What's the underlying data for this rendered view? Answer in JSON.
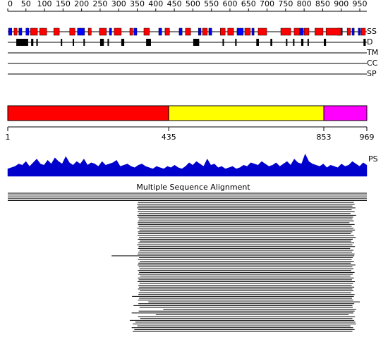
{
  "sequence_length": 969,
  "ruler": {
    "ticks": [
      0,
      50,
      100,
      150,
      200,
      250,
      300,
      350,
      400,
      450,
      500,
      550,
      600,
      650,
      700,
      750,
      800,
      850,
      900,
      950
    ]
  },
  "tracks": {
    "labels": [
      "SS",
      "D",
      "TM",
      "CC",
      "SP"
    ]
  },
  "ss": {
    "helix_color": "#ff0000",
    "strand_color": "#0000ff",
    "strands": [
      [
        3,
        12
      ],
      [
        31,
        39
      ],
      [
        50,
        58
      ],
      [
        189,
        208
      ],
      [
        275,
        281
      ],
      [
        341,
        349
      ],
      [
        408,
        416
      ],
      [
        463,
        471
      ],
      [
        515,
        522
      ],
      [
        543,
        551
      ],
      [
        619,
        636
      ],
      [
        659,
        665
      ],
      [
        789,
        798
      ],
      [
        889,
        903
      ],
      [
        929,
        935
      ],
      [
        946,
        952
      ]
    ],
    "helices": [
      [
        18,
        26
      ],
      [
        62,
        81
      ],
      [
        87,
        106
      ],
      [
        125,
        140
      ],
      [
        168,
        182
      ],
      [
        218,
        226
      ],
      [
        248,
        267
      ],
      [
        288,
        307
      ],
      [
        330,
        338
      ],
      [
        368,
        383
      ],
      [
        425,
        437
      ],
      [
        480,
        494
      ],
      [
        526,
        539
      ],
      [
        574,
        587
      ],
      [
        594,
        610
      ],
      [
        640,
        655
      ],
      [
        676,
        699
      ],
      [
        737,
        764
      ],
      [
        773,
        788
      ],
      [
        800,
        813
      ],
      [
        829,
        851
      ],
      [
        859,
        899
      ],
      [
        916,
        925
      ],
      [
        954,
        965
      ]
    ]
  },
  "disorder": [
    [
      24,
      56
    ],
    [
      64,
      70
    ],
    [
      78,
      82
    ],
    [
      144,
      147
    ],
    [
      176,
      178
    ],
    [
      205,
      207
    ],
    [
      250,
      260
    ],
    [
      270,
      272
    ],
    [
      307,
      315
    ],
    [
      374,
      387
    ],
    [
      501,
      517
    ],
    [
      580,
      582
    ],
    [
      614,
      618
    ],
    [
      671,
      678
    ],
    [
      709,
      714
    ],
    [
      751,
      753
    ],
    [
      770,
      772
    ],
    [
      792,
      798
    ],
    [
      809,
      811
    ],
    [
      853,
      859
    ],
    [
      960,
      966
    ]
  ],
  "domains": {
    "segments": [
      {
        "start": 1,
        "end": 435,
        "color": "#ff0000"
      },
      {
        "start": 435,
        "end": 853,
        "color": "#ffff00"
      },
      {
        "start": 853,
        "end": 969,
        "color": "#ff00ff"
      }
    ],
    "ticks": [
      1,
      435,
      853,
      969
    ]
  },
  "ps": {
    "label": "PS",
    "color": "#0000cc",
    "ylim": [
      0,
      1
    ],
    "values": [
      0.3,
      0.35,
      0.4,
      0.5,
      0.45,
      0.6,
      0.4,
      0.55,
      0.7,
      0.5,
      0.45,
      0.65,
      0.5,
      0.75,
      0.6,
      0.5,
      0.8,
      0.55,
      0.45,
      0.6,
      0.5,
      0.7,
      0.45,
      0.55,
      0.5,
      0.4,
      0.6,
      0.45,
      0.5,
      0.55,
      0.65,
      0.4,
      0.45,
      0.5,
      0.4,
      0.35,
      0.45,
      0.5,
      0.4,
      0.35,
      0.3,
      0.4,
      0.35,
      0.3,
      0.4,
      0.35,
      0.45,
      0.35,
      0.3,
      0.4,
      0.55,
      0.45,
      0.6,
      0.5,
      0.4,
      0.7,
      0.45,
      0.5,
      0.35,
      0.4,
      0.3,
      0.35,
      0.4,
      0.3,
      0.35,
      0.45,
      0.4,
      0.55,
      0.5,
      0.45,
      0.6,
      0.5,
      0.4,
      0.45,
      0.55,
      0.4,
      0.5,
      0.6,
      0.45,
      0.7,
      0.55,
      0.5,
      0.9,
      0.6,
      0.5,
      0.45,
      0.4,
      0.5,
      0.35,
      0.45,
      0.4,
      0.35,
      0.5,
      0.4,
      0.45,
      0.6,
      0.5,
      0.4,
      0.55,
      0.45
    ]
  },
  "alignment": {
    "title": "Multiple Sequence Alignment",
    "rows": [
      [
        1,
        969
      ],
      [
        1,
        969
      ],
      [
        1,
        969
      ],
      [
        1,
        969
      ],
      [
        1,
        969
      ],
      [
        352,
        934
      ],
      [
        350,
        936
      ],
      [
        352,
        930
      ],
      [
        349,
        938
      ],
      [
        353,
        928
      ],
      [
        351,
        936
      ],
      [
        354,
        925
      ],
      [
        350,
        940
      ],
      [
        352,
        932
      ],
      [
        355,
        930
      ],
      [
        353,
        934
      ],
      [
        351,
        922
      ],
      [
        352,
        936
      ],
      [
        354,
        928
      ],
      [
        350,
        933
      ],
      [
        356,
        937
      ],
      [
        352,
        930
      ],
      [
        353,
        926
      ],
      [
        351,
        934
      ],
      [
        355,
        939
      ],
      [
        352,
        931
      ],
      [
        357,
        927
      ],
      [
        353,
        935
      ],
      [
        350,
        930
      ],
      [
        354,
        937
      ],
      [
        352,
        924
      ],
      [
        356,
        933
      ],
      [
        353,
        929
      ],
      [
        351,
        936
      ],
      [
        281,
        935
      ],
      [
        355,
        931
      ],
      [
        352,
        928
      ],
      [
        357,
        934
      ],
      [
        353,
        926
      ],
      [
        351,
        938
      ],
      [
        354,
        930
      ],
      [
        356,
        933
      ],
      [
        352,
        927
      ],
      [
        355,
        936
      ],
      [
        353,
        931
      ],
      [
        358,
        925
      ],
      [
        352,
        934
      ],
      [
        354,
        929
      ],
      [
        351,
        937
      ],
      [
        356,
        932
      ],
      [
        353,
        928
      ],
      [
        355,
        935
      ],
      [
        352,
        930
      ],
      [
        357,
        933
      ],
      [
        354,
        927
      ],
      [
        353,
        936
      ],
      [
        336,
        934
      ],
      [
        355,
        929
      ],
      [
        352,
        932
      ],
      [
        380,
        950
      ],
      [
        353,
        935
      ],
      [
        340,
        930
      ],
      [
        356,
        931
      ],
      [
        420,
        940
      ],
      [
        354,
        936
      ],
      [
        335,
        933
      ],
      [
        400,
        920
      ],
      [
        352,
        937
      ],
      [
        358,
        930
      ],
      [
        330,
        935
      ],
      [
        345,
        938
      ],
      [
        338,
        940
      ],
      [
        350,
        925
      ],
      [
        335,
        932
      ],
      [
        342,
        936
      ],
      [
        338,
        930
      ]
    ]
  }
}
